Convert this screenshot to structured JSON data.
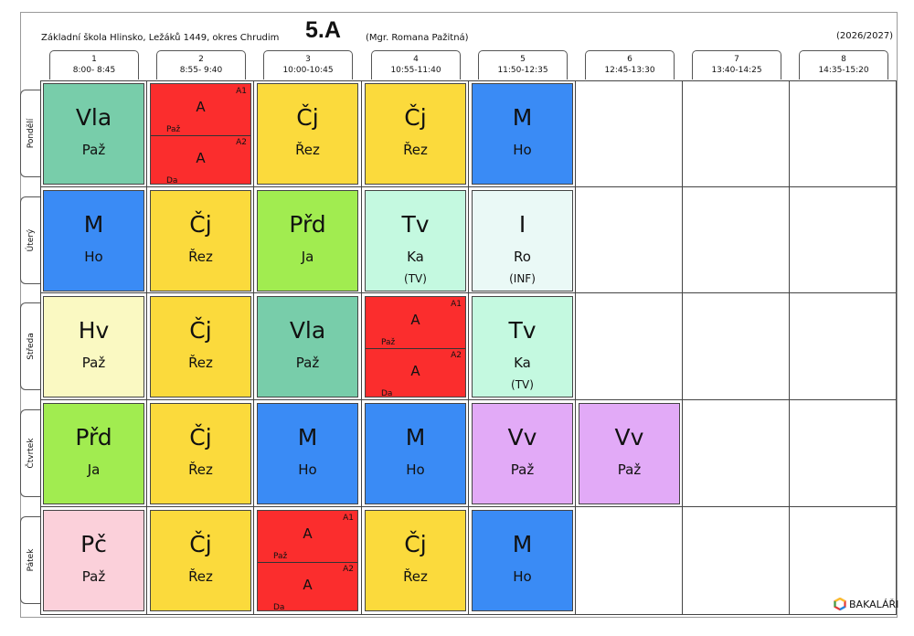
{
  "header": {
    "school": "Základní škola Hlinsko, Ležáků 1449, okres Chrudim",
    "class_name": "5.A",
    "teacher": "(Mgr. Romana Pažitná)",
    "school_year": "(2026/2027)"
  },
  "periods": [
    {
      "num": "1",
      "time": "8:00- 8:45"
    },
    {
      "num": "2",
      "time": "8:55- 9:40"
    },
    {
      "num": "3",
      "time": "10:00-10:45"
    },
    {
      "num": "4",
      "time": "10:55-11:40"
    },
    {
      "num": "5",
      "time": "11:50-12:35"
    },
    {
      "num": "6",
      "time": "12:45-13:30"
    },
    {
      "num": "7",
      "time": "13:40-14:25"
    },
    {
      "num": "8",
      "time": "14:35-15:20"
    }
  ],
  "days": [
    "Pondělí",
    "Úterý",
    "Středa",
    "Čtvrtek",
    "Pátek"
  ],
  "colors": {
    "Vla": "#78cdaa",
    "A": "#fb2d2d",
    "Čj": "#fbda3c",
    "M": "#3a8bf5",
    "Přd": "#a1ec50",
    "Tv": "#c4f9e0",
    "I": "#eaf9f6",
    "Hv": "#faf9c2",
    "Vv": "#e2aaf7",
    "Pč": "#fbd0da"
  },
  "timetable": [
    [
      {
        "subject": "Vla",
        "teacher": "Paž"
      },
      {
        "split": true,
        "groups": [
          {
            "group": "A1",
            "subject": "A",
            "teacher": "Paž"
          },
          {
            "group": "A2",
            "subject": "A",
            "teacher": "Da"
          }
        ]
      },
      {
        "subject": "Čj",
        "teacher": "Řez"
      },
      {
        "subject": "Čj",
        "teacher": "Řez"
      },
      {
        "subject": "M",
        "teacher": "Ho"
      }
    ],
    [
      {
        "subject": "M",
        "teacher": "Ho"
      },
      {
        "subject": "Čj",
        "teacher": "Řez"
      },
      {
        "subject": "Přd",
        "teacher": "Ja"
      },
      {
        "subject": "Tv",
        "teacher": "Ka",
        "room": "(TV)"
      },
      {
        "subject": "I",
        "teacher": "Ro",
        "room": "(INF)"
      }
    ],
    [
      {
        "subject": "Hv",
        "teacher": "Paž"
      },
      {
        "subject": "Čj",
        "teacher": "Řez"
      },
      {
        "subject": "Vla",
        "teacher": "Paž"
      },
      {
        "split": true,
        "groups": [
          {
            "group": "A1",
            "subject": "A",
            "teacher": "Paž"
          },
          {
            "group": "A2",
            "subject": "A",
            "teacher": "Da"
          }
        ]
      },
      {
        "subject": "Tv",
        "teacher": "Ka",
        "room": "(TV)"
      }
    ],
    [
      {
        "subject": "Přd",
        "teacher": "Ja"
      },
      {
        "subject": "Čj",
        "teacher": "Řez"
      },
      {
        "subject": "M",
        "teacher": "Ho"
      },
      {
        "subject": "M",
        "teacher": "Ho"
      },
      {
        "subject": "Vv",
        "teacher": "Paž"
      },
      {
        "subject": "Vv",
        "teacher": "Paž"
      }
    ],
    [
      {
        "subject": "Pč",
        "teacher": "Paž"
      },
      {
        "subject": "Čj",
        "teacher": "Řez"
      },
      {
        "split": true,
        "groups": [
          {
            "group": "A1",
            "subject": "A",
            "teacher": "Paž"
          },
          {
            "group": "A2",
            "subject": "A",
            "teacher": "Da"
          }
        ]
      },
      {
        "subject": "Čj",
        "teacher": "Řez"
      },
      {
        "subject": "M",
        "teacher": "Ho"
      }
    ]
  ],
  "footer": {
    "logo_text": "BAKALÁŘI",
    "logo_icon": "hexagon-logo-icon"
  }
}
